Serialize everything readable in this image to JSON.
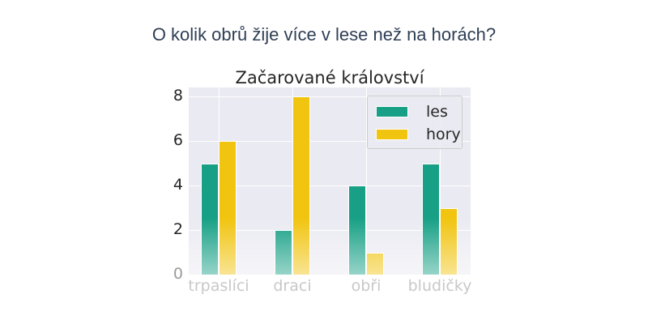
{
  "question": "O kolik obrů žije více v lese než na horách?",
  "chart_data": {
    "type": "bar",
    "title": "Začarované království",
    "categories": [
      "trpaslíci",
      "draci",
      "obři",
      "bludičky"
    ],
    "series": [
      {
        "name": "les",
        "color": "#17a085",
        "values": [
          5,
          2,
          4,
          5
        ]
      },
      {
        "name": "hory",
        "color": "#f1c40f",
        "values": [
          6,
          8,
          1,
          3
        ]
      }
    ],
    "xlabel": "",
    "ylabel": "",
    "ylim": [
      0,
      8.4
    ],
    "yticks": [
      0,
      2,
      4,
      6,
      8
    ],
    "grid": true,
    "legend_position": "upper right"
  }
}
